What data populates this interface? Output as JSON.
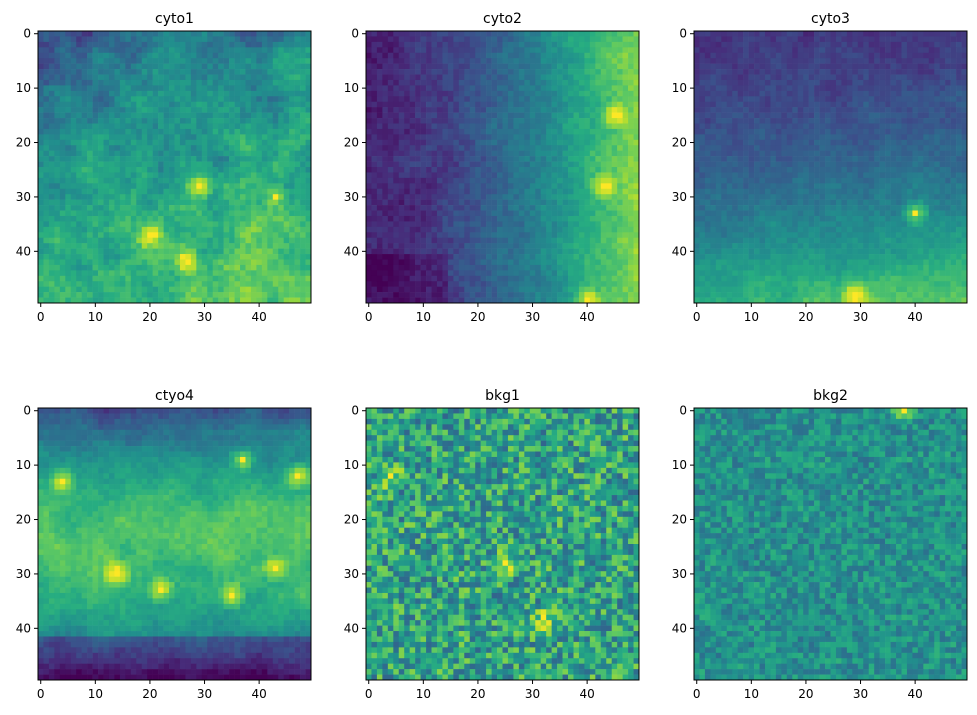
{
  "chart_data": [
    {
      "type": "heatmap",
      "title": "cyto1",
      "grid_size": 50,
      "pattern": "mottled",
      "x_ticks": [
        0,
        10,
        20,
        30,
        40
      ],
      "y_ticks": [
        0,
        10,
        20,
        30,
        40
      ],
      "xlim": [
        -0.5,
        49.5
      ],
      "ylim": [
        49.5,
        -0.5
      ],
      "colormap": "viridis",
      "hotspots": [
        [
          27,
          42
        ],
        [
          20,
          37
        ],
        [
          43,
          30
        ],
        [
          29,
          28
        ]
      ]
    },
    {
      "type": "heatmap",
      "title": "cyto2",
      "grid_size": 50,
      "pattern": "right-gradient",
      "x_ticks": [
        0,
        10,
        20,
        30,
        40
      ],
      "y_ticks": [
        0,
        10,
        20,
        30,
        40
      ],
      "xlim": [
        -0.5,
        49.5
      ],
      "ylim": [
        49.5,
        -0.5
      ],
      "colormap": "viridis",
      "hotspots": [
        [
          40,
          49
        ],
        [
          45,
          15
        ],
        [
          43,
          28
        ]
      ]
    },
    {
      "type": "heatmap",
      "title": "cyto3",
      "grid_size": 50,
      "pattern": "bottom-gradient",
      "x_ticks": [
        0,
        10,
        20,
        30,
        40
      ],
      "y_ticks": [
        0,
        10,
        20,
        30,
        40
      ],
      "xlim": [
        -0.5,
        49.5
      ],
      "ylim": [
        49.5,
        -0.5
      ],
      "colormap": "viridis",
      "hotspots": [
        [
          40,
          33
        ],
        [
          29,
          48
        ]
      ]
    },
    {
      "type": "heatmap",
      "title": "ctyo4",
      "grid_size": 50,
      "pattern": "band",
      "x_ticks": [
        0,
        10,
        20,
        30,
        40
      ],
      "y_ticks": [
        0,
        10,
        20,
        30,
        40
      ],
      "xlim": [
        -0.5,
        49.5
      ],
      "ylim": [
        49.5,
        -0.5
      ],
      "colormap": "viridis",
      "hotspots": [
        [
          4,
          13
        ],
        [
          37,
          9
        ],
        [
          47,
          12
        ],
        [
          43,
          29
        ],
        [
          35,
          34
        ],
        [
          14,
          30
        ],
        [
          22,
          33
        ]
      ]
    },
    {
      "type": "heatmap",
      "title": "bkg1",
      "grid_size": 50,
      "pattern": "noise-high",
      "x_ticks": [
        0,
        10,
        20,
        30,
        40
      ],
      "y_ticks": [
        0,
        10,
        20,
        30,
        40
      ],
      "xlim": [
        -0.5,
        49.5
      ],
      "ylim": [
        49.5,
        -0.5
      ],
      "colormap": "viridis",
      "hotspots": [
        [
          4,
          12
        ],
        [
          25,
          28
        ],
        [
          32,
          38
        ]
      ]
    },
    {
      "type": "heatmap",
      "title": "bkg2",
      "grid_size": 50,
      "pattern": "noise-low",
      "x_ticks": [
        0,
        10,
        20,
        30,
        40
      ],
      "y_ticks": [
        0,
        10,
        20,
        30,
        40
      ],
      "xlim": [
        -0.5,
        49.5
      ],
      "ylim": [
        49.5,
        -0.5
      ],
      "colormap": "viridis",
      "hotspots": [
        [
          38,
          0
        ]
      ]
    }
  ]
}
